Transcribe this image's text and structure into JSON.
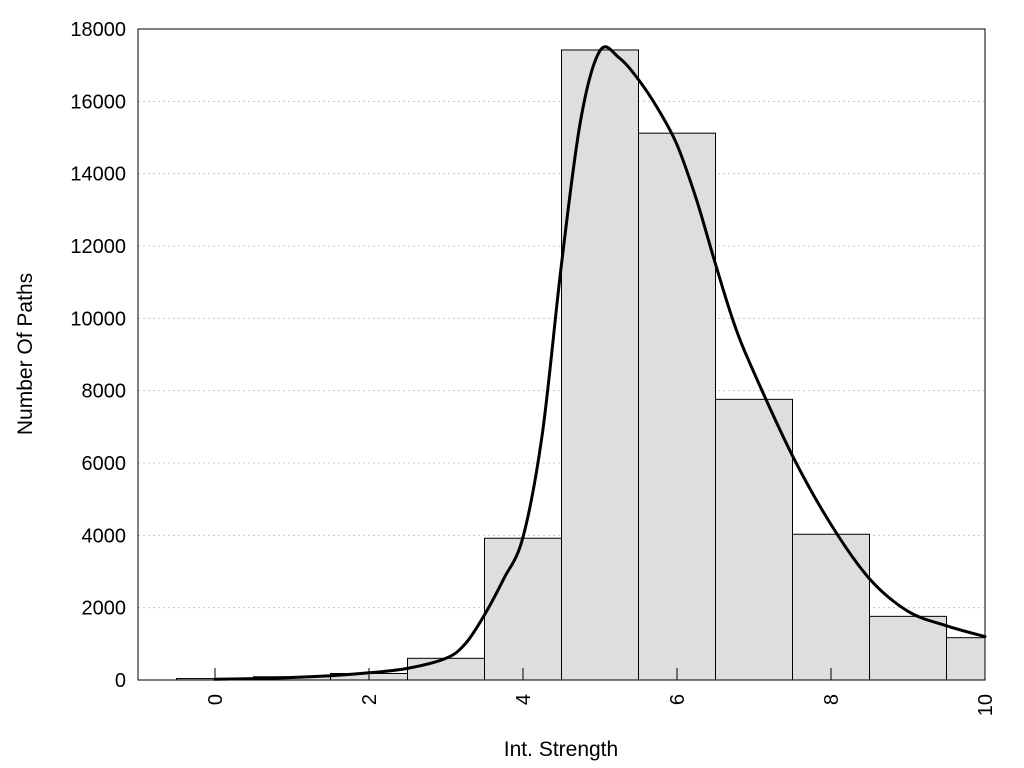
{
  "chart_data": {
    "type": "bar",
    "title": "",
    "xlabel": "Int. Strength",
    "ylabel": "Number Of Paths",
    "xlim": [
      -1,
      10
    ],
    "ylim": [
      0,
      18000
    ],
    "grid": true,
    "legend": "none",
    "x_ticks": [
      "0",
      "2",
      "4",
      "6",
      "8",
      "10"
    ],
    "y_ticks": [
      "0",
      "2000",
      "4000",
      "6000",
      "8000",
      "10000",
      "12000",
      "14000",
      "16000",
      "18000"
    ],
    "bar_color": "#dedede",
    "edge_color": "#000000",
    "bar_width": 1,
    "x": [
      0,
      1,
      2,
      3,
      4,
      5,
      6,
      7,
      8,
      9,
      10
    ],
    "values": [
      40,
      90,
      180,
      600,
      3920,
      17420,
      15120,
      7760,
      4030,
      1760,
      1170
    ],
    "curve": {
      "x": [
        0,
        0.5,
        1,
        1.5,
        2,
        2.5,
        3,
        3.25,
        3.5,
        3.75,
        4,
        4.25,
        4.5,
        4.75,
        5,
        5.25,
        5.5,
        5.75,
        6,
        6.25,
        6.5,
        6.75,
        7,
        7.5,
        8,
        8.5,
        9,
        9.5,
        10
      ],
      "y": [
        20,
        40,
        70,
        120,
        200,
        320,
        600,
        1000,
        1800,
        2800,
        3950,
        6800,
        11500,
        15500,
        17400,
        17200,
        16600,
        15800,
        14800,
        13300,
        11500,
        9800,
        8500,
        6200,
        4300,
        2800,
        1900,
        1500,
        1200
      ]
    }
  }
}
